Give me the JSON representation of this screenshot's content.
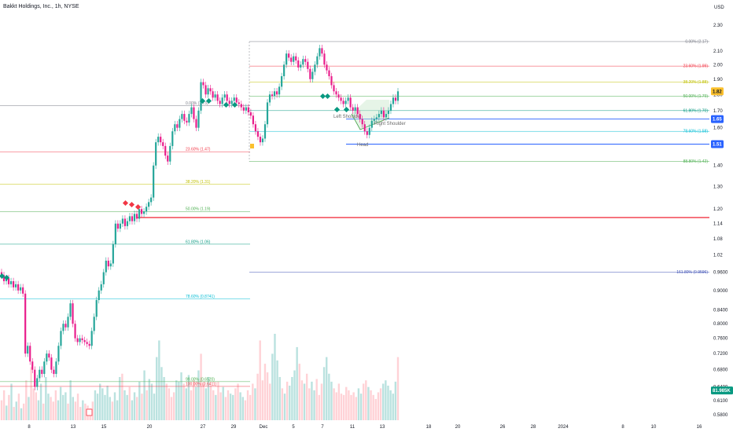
{
  "chart_data": {
    "type": "candlestick",
    "title": "Bakkt Holdings, Inc., 1h, NYSE",
    "currency": "USD",
    "y_scale": "log",
    "ylim": [
      0.57,
      2.42
    ],
    "y_ticks": [
      "2.30",
      "2.10",
      "2.00",
      "1.90",
      "1.80",
      "1.70",
      "1.60",
      "1.50",
      "1.40",
      "1.30",
      "1.20",
      "1.14",
      "1.08",
      "1.02",
      "0.9600",
      "0.9000",
      "0.8400",
      "0.8000",
      "0.7600",
      "0.7200",
      "0.6800",
      "0.6400",
      "0.6100",
      "0.5800"
    ],
    "x_labels": [
      "8",
      "13",
      "15",
      "20",
      "27",
      "29",
      "Dec",
      "5",
      "7",
      "11",
      "13",
      "18",
      "20",
      "26",
      "28",
      "2024",
      "8",
      "10",
      "16"
    ],
    "fib_left": [
      {
        "label": "0.00% (1.73)",
        "value": 1.73,
        "color": "#787b86"
      },
      {
        "label": "23.60% (1.47)",
        "value": 1.47,
        "color": "#f23645"
      },
      {
        "label": "38.20% (1.31)",
        "value": 1.31,
        "color": "#c0c000"
      },
      {
        "label": "50.00% (1.19)",
        "value": 1.19,
        "color": "#4caf50"
      },
      {
        "label": "61.80% (1.06)",
        "value": 1.06,
        "color": "#089981"
      },
      {
        "label": "78.60% (0.8741)",
        "value": 0.8741,
        "color": "#00bcd4"
      },
      {
        "label": "99.00% (0.6520)",
        "value": 0.652,
        "color": "#4caf50"
      },
      {
        "label": "100.00% (0.6411)",
        "value": 0.6411,
        "color": "#f23645"
      }
    ],
    "fib_right": [
      {
        "label": "0.00% (2.17)",
        "value": 2.17,
        "color": "#787b86"
      },
      {
        "label": "23.60% (1.99)",
        "value": 1.99,
        "color": "#f23645"
      },
      {
        "label": "38.20% (1.88)",
        "value": 1.88,
        "color": "#c0c000"
      },
      {
        "label": "50.00% (1.79)",
        "value": 1.79,
        "color": "#4caf50"
      },
      {
        "label": "61.80% (1.70)",
        "value": 1.7,
        "color": "#089981"
      },
      {
        "label": "78.60% (1.58)",
        "value": 1.58,
        "color": "#00bcd4"
      },
      {
        "label": "88.80% (1.42)",
        "value": 1.42,
        "color": "#4caf50"
      },
      {
        "label": "161.80% (0.9596)",
        "value": 0.9596,
        "color": "#3f51b5"
      }
    ],
    "horizontal_lines": [
      {
        "value": 1.65,
        "color": "#2962ff"
      },
      {
        "value": 1.51,
        "color": "#2962ff"
      },
      {
        "value": 1.165,
        "color": "#f23645"
      }
    ],
    "price_tags": [
      {
        "label": "1.82",
        "value": 1.82,
        "bg": "#fbc02d",
        "fg": "#131722"
      },
      {
        "label": "1.65",
        "value": 1.65,
        "bg": "#2962ff",
        "fg": "#ffffff"
      },
      {
        "label": "1.51",
        "value": 1.51,
        "bg": "#2962ff",
        "fg": "#ffffff"
      },
      {
        "label": "81.985K",
        "value": 0.632,
        "bg": "#089981",
        "fg": "#ffffff"
      }
    ],
    "annotations": [
      "Left Shoulder",
      "Right Shoulder",
      "Head"
    ],
    "candles": [
      [
        0.96,
        0.95
      ],
      [
        0.95,
        0.93
      ],
      [
        0.93,
        0.94
      ],
      [
        0.94,
        0.92
      ],
      [
        0.92,
        0.93
      ],
      [
        0.93,
        0.91
      ],
      [
        0.91,
        0.92
      ],
      [
        0.92,
        0.9
      ],
      [
        0.9,
        0.91
      ],
      [
        0.91,
        0.89
      ],
      [
        0.89,
        0.72
      ],
      [
        0.72,
        0.74
      ],
      [
        0.74,
        0.7
      ],
      [
        0.7,
        0.68
      ],
      [
        0.68,
        0.64
      ],
      [
        0.64,
        0.66
      ],
      [
        0.66,
        0.68
      ],
      [
        0.68,
        0.67
      ],
      [
        0.67,
        0.7
      ],
      [
        0.7,
        0.72
      ],
      [
        0.72,
        0.71
      ],
      [
        0.71,
        0.68
      ],
      [
        0.68,
        0.67
      ],
      [
        0.67,
        0.7
      ],
      [
        0.7,
        0.74
      ],
      [
        0.74,
        0.78
      ],
      [
        0.78,
        0.8
      ],
      [
        0.8,
        0.79
      ],
      [
        0.79,
        0.82
      ],
      [
        0.82,
        0.86
      ],
      [
        0.86,
        0.8
      ],
      [
        0.8,
        0.76
      ],
      [
        0.76,
        0.75
      ],
      [
        0.75,
        0.76
      ],
      [
        0.76,
        0.755
      ],
      [
        0.755,
        0.75
      ],
      [
        0.75,
        0.745
      ],
      [
        0.745,
        0.74
      ],
      [
        0.74,
        0.78
      ],
      [
        0.78,
        0.82
      ],
      [
        0.82,
        0.87
      ],
      [
        0.87,
        0.9
      ],
      [
        0.9,
        0.92
      ],
      [
        0.92,
        0.96
      ],
      [
        0.96,
        1.0
      ],
      [
        1.0,
        0.98
      ],
      [
        0.98,
        0.99
      ],
      [
        0.99,
        1.06
      ],
      [
        1.06,
        1.14
      ],
      [
        1.14,
        1.12
      ],
      [
        1.12,
        1.14
      ],
      [
        1.14,
        1.16
      ],
      [
        1.16,
        1.13
      ],
      [
        1.13,
        1.15
      ],
      [
        1.15,
        1.17
      ],
      [
        1.17,
        1.15
      ],
      [
        1.15,
        1.18
      ],
      [
        1.18,
        1.16
      ],
      [
        1.16,
        1.2
      ],
      [
        1.2,
        1.18
      ],
      [
        1.18,
        1.19
      ],
      [
        1.19,
        1.21
      ],
      [
        1.21,
        1.23
      ],
      [
        1.23,
        1.25
      ],
      [
        1.25,
        1.4
      ],
      [
        1.4,
        1.52
      ],
      [
        1.52,
        1.55
      ],
      [
        1.55,
        1.52
      ],
      [
        1.52,
        1.5
      ],
      [
        1.5,
        1.45
      ],
      [
        1.45,
        1.42
      ],
      [
        1.42,
        1.5
      ],
      [
        1.5,
        1.58
      ],
      [
        1.58,
        1.62
      ],
      [
        1.62,
        1.6
      ],
      [
        1.6,
        1.65
      ],
      [
        1.65,
        1.68
      ],
      [
        1.68,
        1.64
      ],
      [
        1.64,
        1.63
      ],
      [
        1.63,
        1.68
      ],
      [
        1.68,
        1.72
      ],
      [
        1.72,
        1.65
      ],
      [
        1.65,
        1.6
      ],
      [
        1.6,
        1.7
      ],
      [
        1.7,
        1.88
      ],
      [
        1.88,
        1.86
      ],
      [
        1.86,
        1.8
      ],
      [
        1.8,
        1.84
      ],
      [
        1.84,
        1.82
      ],
      [
        1.82,
        1.78
      ],
      [
        1.78,
        1.8
      ],
      [
        1.8,
        1.76
      ],
      [
        1.76,
        1.74
      ],
      [
        1.74,
        1.78
      ],
      [
        1.78,
        1.8
      ],
      [
        1.8,
        1.76
      ],
      [
        1.76,
        1.74
      ],
      [
        1.74,
        1.76
      ],
      [
        1.76,
        1.78
      ],
      [
        1.78,
        1.75
      ],
      [
        1.75,
        1.74
      ],
      [
        1.74,
        1.72
      ],
      [
        1.72,
        1.7
      ],
      [
        1.7,
        1.72
      ],
      [
        1.72,
        1.69
      ],
      [
        1.69,
        1.67
      ],
      [
        1.67,
        1.62
      ],
      [
        1.62,
        1.58
      ],
      [
        1.58,
        1.55
      ],
      [
        1.55,
        1.52
      ],
      [
        1.52,
        1.54
      ],
      [
        1.54,
        1.62
      ],
      [
        1.62,
        1.75
      ],
      [
        1.75,
        1.8
      ],
      [
        1.8,
        1.79
      ],
      [
        1.79,
        1.82
      ],
      [
        1.82,
        1.8
      ],
      [
        1.8,
        1.85
      ],
      [
        1.85,
        1.92
      ],
      [
        1.92,
        2.0
      ],
      [
        2.0,
        2.08
      ],
      [
        2.08,
        2.05
      ],
      [
        2.05,
        2.02
      ],
      [
        2.02,
        2.06
      ],
      [
        2.06,
        2.03
      ],
      [
        2.03,
        1.98
      ],
      [
        1.98,
        2.0
      ],
      [
        2.0,
        2.04
      ],
      [
        2.04,
        2.02
      ],
      [
        2.02,
        1.97
      ],
      [
        1.97,
        1.9
      ],
      [
        1.9,
        1.95
      ],
      [
        1.95,
        2.0
      ],
      [
        2.0,
        2.06
      ],
      [
        2.06,
        2.12
      ],
      [
        2.12,
        2.08
      ],
      [
        2.08,
        2.0
      ],
      [
        2.0,
        1.96
      ],
      [
        1.96,
        1.92
      ],
      [
        1.92,
        1.86
      ],
      [
        1.86,
        1.82
      ],
      [
        1.82,
        1.8
      ],
      [
        1.8,
        1.78
      ],
      [
        1.78,
        1.76
      ],
      [
        1.76,
        1.74
      ],
      [
        1.74,
        1.76
      ],
      [
        1.76,
        1.78
      ],
      [
        1.78,
        1.72
      ],
      [
        1.72,
        1.7
      ],
      [
        1.7,
        1.72
      ],
      [
        1.72,
        1.68
      ],
      [
        1.68,
        1.65
      ],
      [
        1.65,
        1.62
      ],
      [
        1.62,
        1.58
      ],
      [
        1.58,
        1.56
      ],
      [
        1.56,
        1.6
      ],
      [
        1.6,
        1.64
      ],
      [
        1.64,
        1.65
      ],
      [
        1.65,
        1.66
      ],
      [
        1.66,
        1.68
      ],
      [
        1.68,
        1.7
      ],
      [
        1.7,
        1.66
      ],
      [
        1.66,
        1.68
      ],
      [
        1.68,
        1.7
      ],
      [
        1.7,
        1.74
      ],
      [
        1.74,
        1.78
      ],
      [
        1.78,
        1.76
      ],
      [
        1.76,
        1.82
      ]
    ],
    "volumes": [
      30,
      45,
      22,
      38,
      55,
      20,
      28,
      40,
      18,
      25,
      60,
      35,
      80,
      48,
      42,
      30,
      55,
      25,
      65,
      40,
      35,
      28,
      45,
      30,
      50,
      38,
      42,
      25,
      60,
      35,
      28,
      40,
      20,
      30,
      25,
      22,
      18,
      28,
      45,
      40,
      55,
      48,
      38,
      52,
      35,
      28,
      42,
      30,
      65,
      70,
      45,
      38,
      50,
      30,
      42,
      35,
      58,
      40,
      75,
      45,
      62,
      55,
      40,
      95,
      120,
      80,
      65,
      55,
      48,
      35,
      42,
      60,
      58,
      72,
      55,
      48,
      68,
      45,
      60,
      50,
      75,
      100,
      55,
      48,
      65,
      52,
      45,
      38,
      58,
      42,
      50,
      35,
      45,
      40,
      38,
      48,
      55,
      42,
      35,
      30,
      45,
      38,
      55,
      48,
      70,
      120,
      60,
      85,
      72,
      55,
      100,
      130,
      90,
      65,
      48,
      40,
      58,
      52,
      65,
      75,
      110,
      85,
      60,
      55,
      70,
      48,
      58,
      45,
      62,
      38,
      55,
      80,
      95,
      70,
      58,
      48,
      42,
      55,
      40,
      38,
      50,
      45,
      38,
      42,
      35,
      48,
      40,
      55,
      60,
      50,
      45,
      38,
      32,
      42,
      48,
      55,
      60,
      52,
      45,
      40,
      58,
      95
    ]
  }
}
